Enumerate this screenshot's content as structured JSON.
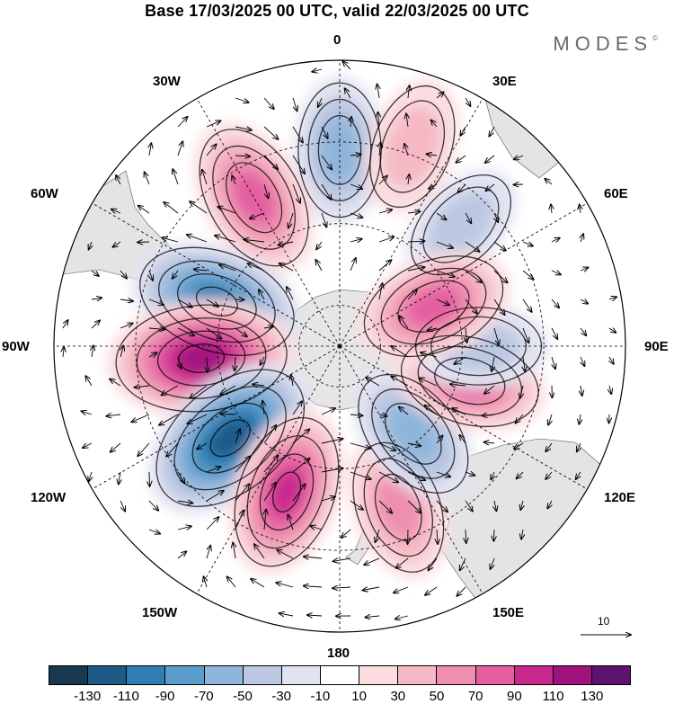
{
  "title": "Base 17/03/2025 00 UTC, valid 22/03/2025 00 UTC",
  "brand": "MODES",
  "brand_mark": "©",
  "longitude_labels": {
    "lon_0": "0",
    "lon_30e": "30E",
    "lon_60e": "60E",
    "lon_90e": "90E",
    "lon_120e": "120E",
    "lon_150e": "150E",
    "lon_180": "180",
    "lon_150w": "150W",
    "lon_120w": "120W",
    "lon_90w": "90W",
    "lon_60w": "60W",
    "lon_30w": "30W"
  },
  "vector_scale_label": "10",
  "colorbar": {
    "colors": [
      "#18394f",
      "#1e5a86",
      "#2f7db3",
      "#5a9ccb",
      "#90b5db",
      "#bcc8e2",
      "#e2e3f1",
      "#ffffff",
      "#fbdde0",
      "#f5b9c5",
      "#ee8fb0",
      "#e45ea0",
      "#c9298f",
      "#a0137f",
      "#5e1270"
    ],
    "tick_labels": [
      "-130",
      "-110",
      "-90",
      "-70",
      "-50",
      "-30",
      "-10",
      "10",
      "30",
      "50",
      "70",
      "90",
      "110",
      "130"
    ]
  },
  "anomaly_cells": [
    {
      "name": "anomaly-cell-lon0-negative",
      "lon": 0,
      "colat": 48,
      "value": -60
    },
    {
      "name": "anomaly-cell-lon20e-positive",
      "lon": 20,
      "colat": 52,
      "value": 45
    },
    {
      "name": "anomaly-cell-lon45e-negative",
      "lon": 45,
      "colat": 42,
      "value": -35
    },
    {
      "name": "anomaly-cell-lon30w-positive",
      "lon": -30,
      "colat": 42,
      "value": 85
    },
    {
      "name": "anomaly-cell-lon70w-negative",
      "lon": -70,
      "colat": 32,
      "value": -105
    },
    {
      "name": "anomaly-cell-lon95w-positive",
      "lon": -95,
      "colat": 34,
      "value": 125
    },
    {
      "name": "anomaly-cell-lon130w-negative",
      "lon": -130,
      "colat": 35,
      "value": -125
    },
    {
      "name": "anomaly-cell-lon160w-positive",
      "lon": -160,
      "colat": 38,
      "value": 95
    },
    {
      "name": "anomaly-cell-lon160e-positive",
      "lon": 160,
      "colat": 42,
      "value": 60
    },
    {
      "name": "anomaly-cell-lon140e-negative",
      "lon": 140,
      "colat": 28,
      "value": -65
    },
    {
      "name": "anomaly-cell-lon105e-positive",
      "lon": 105,
      "colat": 33,
      "value": 70
    },
    {
      "name": "anomaly-cell-lon90e-negative",
      "lon": 90,
      "colat": 34,
      "value": -45
    },
    {
      "name": "anomaly-cell-lon67e-positive",
      "lon": 67,
      "colat": 25,
      "value": 80
    }
  ]
}
